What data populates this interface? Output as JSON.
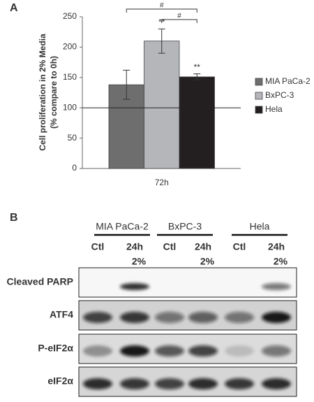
{
  "panel_labels": [
    "A",
    "B"
  ],
  "chart_data": {
    "type": "bar",
    "y_label": [
      "Cell proliferation in 2% Media",
      "(% compare to 0h)"
    ],
    "categories": [
      "72h"
    ],
    "series": [
      {
        "name": "MIA PaCa-2",
        "color": "#6e6e6e",
        "values": [
          138
        ],
        "errors": [
          24
        ]
      },
      {
        "name": "BxPC-3",
        "color": "#b4b6ba",
        "values": [
          210
        ],
        "errors": [
          20
        ]
      },
      {
        "name": "Hela",
        "color": "#231f20",
        "values": [
          151
        ],
        "errors": [
          5
        ]
      }
    ],
    "ylim": [
      0,
      250
    ],
    "yticks": [
      0,
      50,
      100,
      150,
      200,
      250
    ],
    "reference_line": 100,
    "stars": [
      {
        "series": 1,
        "text": "**"
      },
      {
        "series": 2,
        "text": "**"
      }
    ],
    "brackets": [
      {
        "from": 0,
        "to": 2,
        "text": "#"
      },
      {
        "from": 1,
        "to": 2,
        "text": "#"
      }
    ],
    "legend": "right"
  },
  "blot": {
    "groups": [
      {
        "name": "MIA PaCa-2",
        "lanes": [
          [
            "Ctl"
          ],
          [
            "24h",
            "2%"
          ]
        ]
      },
      {
        "name": "BxPC-3",
        "lanes": [
          [
            "Ctl"
          ],
          [
            "24h",
            "2%"
          ]
        ]
      },
      {
        "name": "Hela",
        "lanes": [
          [
            "Ctl"
          ],
          [
            "24h",
            "2%"
          ]
        ]
      }
    ],
    "rows": [
      "Cleaved PARP",
      "ATF4",
      "P-eIF2α",
      "eIF2α"
    ]
  }
}
